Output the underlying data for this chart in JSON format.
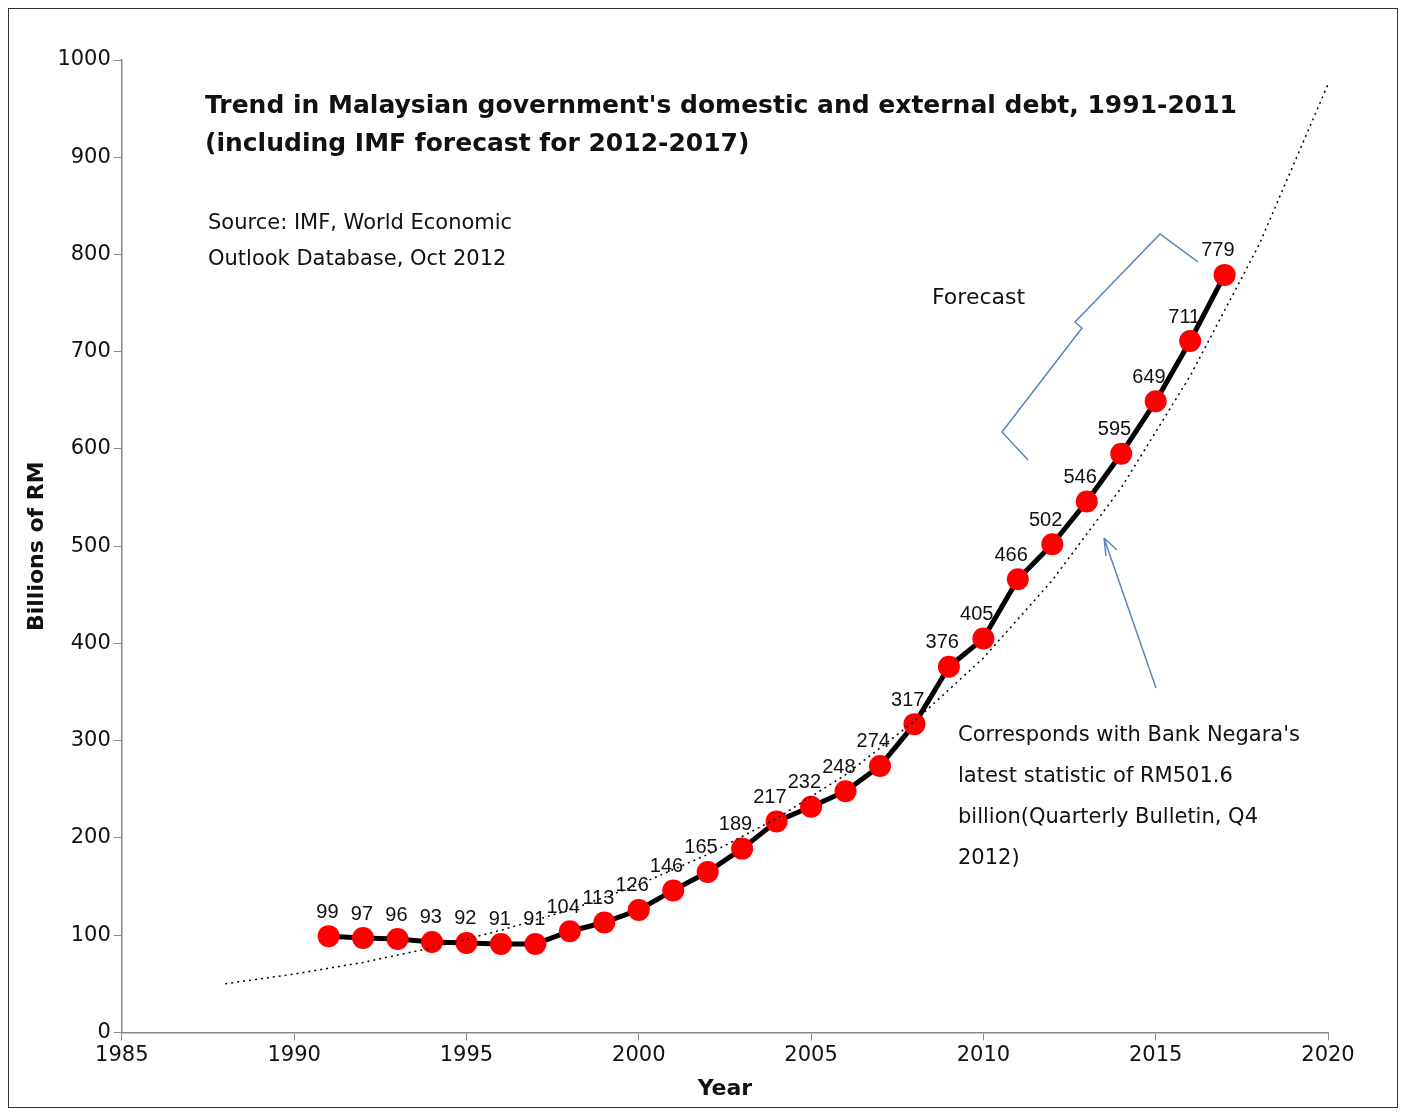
{
  "chart_data": {
    "type": "line",
    "title": "Trend in Malaysian government's domestic and external debt, 1991-2011 (including IMF forecast for 2012-2017)",
    "xlabel": "Year",
    "ylabel": "Billions of RM",
    "annotations": [
      "Source: IMF, World Economic Outlook Database, Oct 2012",
      "Forecast",
      "Corresponds with Bank Negara's latest statistic of RM501.6 billion(Quarterly Bulletin, Q4 2012)"
    ],
    "xlim": [
      1985,
      2020
    ],
    "xticks": [
      1985,
      1990,
      1995,
      2000,
      2005,
      2010,
      2015,
      2020
    ],
    "ylim": [
      0,
      1000
    ],
    "yticks": [
      0,
      100,
      200,
      300,
      400,
      500,
      600,
      700,
      800,
      900,
      1000
    ],
    "grid": false,
    "legend": false,
    "series": [
      {
        "x": [
          1988,
          1990,
          1992,
          1994,
          1996,
          1998,
          2000,
          2002,
          2004,
          2006,
          2008,
          2010,
          2012,
          2014,
          2016,
          2018,
          2020
        ],
        "values": [
          50,
          60,
          72,
          87,
          105,
          126,
          152,
          183,
          220,
          265,
          320,
          385,
          465,
          560,
          675,
          810,
          975
        ],
        "color": "#000000",
        "line_style": "dotted",
        "marker": "none"
      },
      {
        "x": [
          1991,
          1992,
          1993,
          1994,
          1995,
          1996,
          1997,
          1998,
          1999,
          2000,
          2001,
          2002,
          2003,
          2004,
          2005,
          2006,
          2007,
          2008,
          2009,
          2010,
          2011,
          2012,
          2013,
          2014,
          2015,
          2016,
          2017
        ],
        "values": [
          99,
          97,
          96,
          93,
          92,
          91,
          91,
          104,
          113,
          126,
          146,
          165,
          189,
          217,
          232,
          248,
          274,
          317,
          376,
          405,
          466,
          502,
          546,
          595,
          649,
          711,
          779
        ],
        "color": "#000000",
        "colors": [
          "#ff0000",
          "#ff0000",
          "#ff0000",
          "#ff0000",
          "#ff0000",
          "#ff0000",
          "#ff0000",
          "#ff0000",
          "#ff0000",
          "#ff0000",
          "#ff0000",
          "#ff0000",
          "#ff0000",
          "#ff0000",
          "#ff0000",
          "#ff0000",
          "#ff0000",
          "#ff0000",
          "#ff0000",
          "#ff0000",
          "#ff0000",
          "#ff0000",
          "#ff0000",
          "#ff0000",
          "#ff0000",
          "#ff0000",
          "#ff0000"
        ],
        "line_style": "solid",
        "marker": "circle",
        "value_labels": [
          "99",
          "97",
          "96",
          "93",
          "92",
          "91",
          "91",
          "104",
          "113",
          "126",
          "146",
          "165",
          "189",
          "217",
          "232",
          "248",
          "274",
          "317",
          "376",
          "405",
          "466",
          "502",
          "546",
          "595",
          "649",
          "711",
          "779"
        ]
      }
    ]
  }
}
